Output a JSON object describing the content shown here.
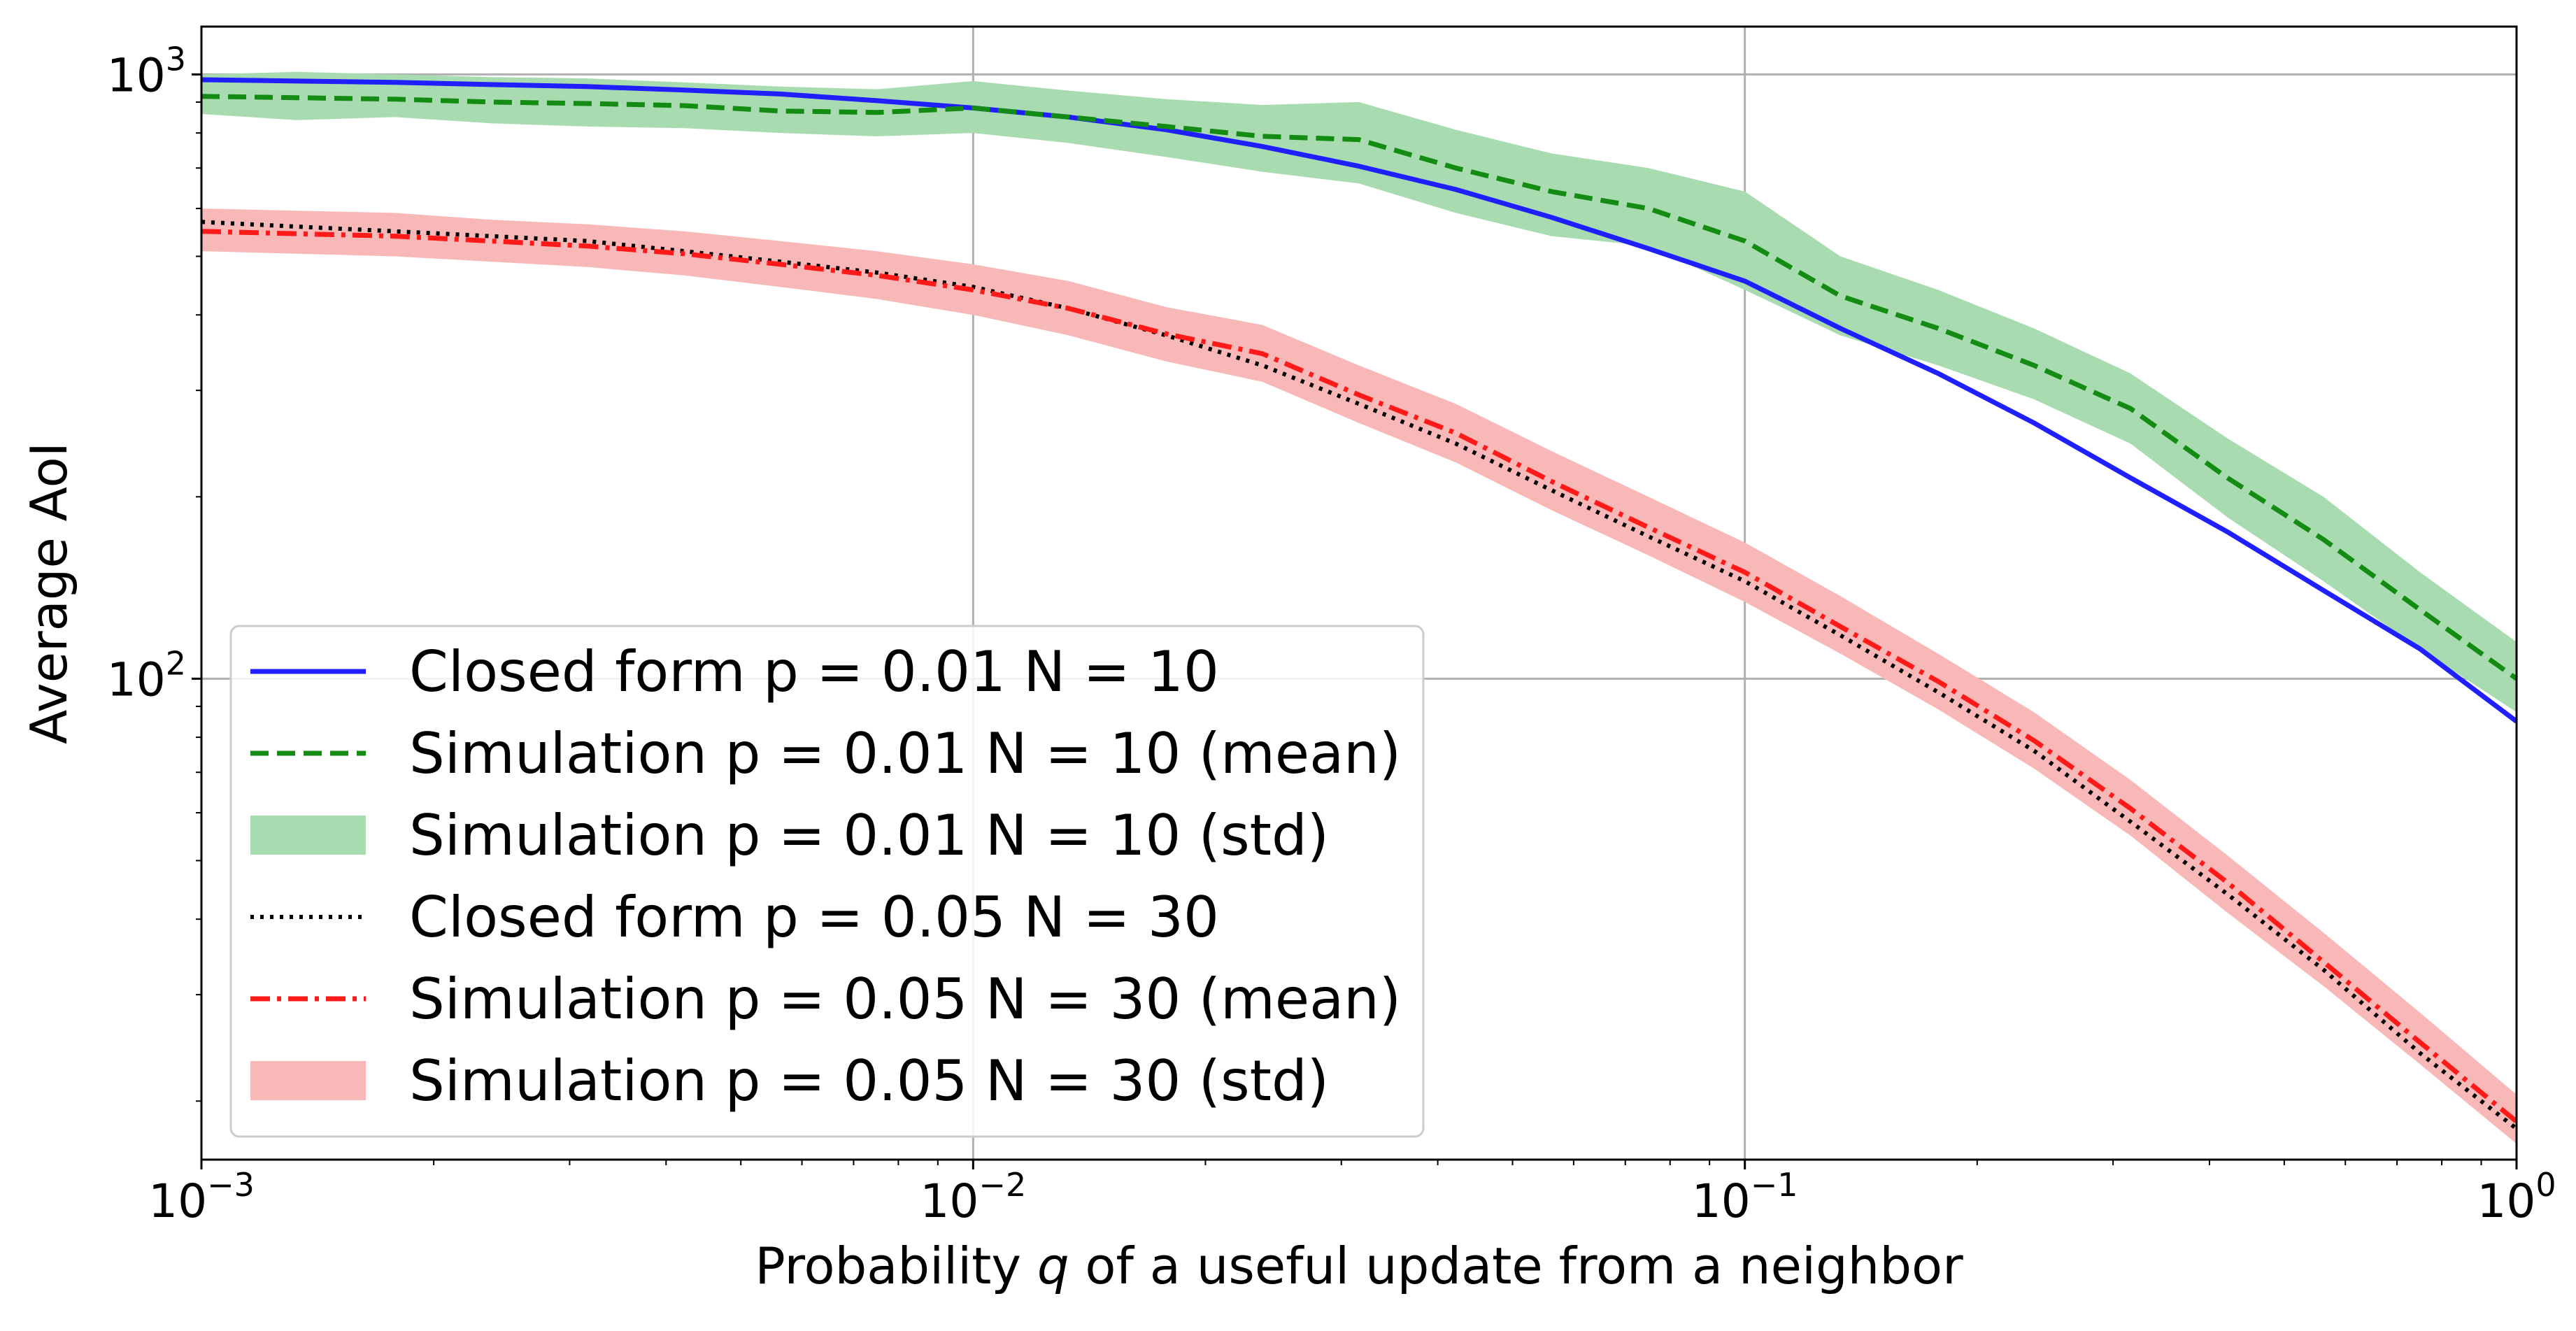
{
  "chart_data": {
    "type": "line",
    "title": "",
    "xlabel_prefix": "Probability ",
    "xlabel_var": "q",
    "xlabel_suffix": " of a useful update from a neighbor",
    "ylabel": "Average AoI",
    "xscale": "log",
    "yscale": "log",
    "xlim": [
      0.001,
      1
    ],
    "ylim": [
      16,
      1200
    ],
    "grid": true,
    "legend_position": "lower-left",
    "x_ticks": [
      {
        "value": 0.001,
        "base": "10",
        "exp": "−3"
      },
      {
        "value": 0.01,
        "base": "10",
        "exp": "−2"
      },
      {
        "value": 0.1,
        "base": "10",
        "exp": "−1"
      },
      {
        "value": 1,
        "base": "10",
        "exp": "0"
      }
    ],
    "y_ticks": [
      {
        "value": 100,
        "base": "10",
        "exp": "2"
      },
      {
        "value": 1000,
        "base": "10",
        "exp": "3"
      }
    ],
    "x": [
      0.001,
      0.00133,
      0.00178,
      0.00237,
      0.00316,
      0.00422,
      0.00562,
      0.0075,
      0.01,
      0.0133,
      0.0178,
      0.0237,
      0.0316,
      0.0422,
      0.0562,
      0.075,
      0.1,
      0.133,
      0.178,
      0.237,
      0.316,
      0.422,
      0.562,
      0.75,
      1.0
    ],
    "series": [
      {
        "name": "Closed form p = 0.01 N = 10",
        "style": "solid",
        "color": "#1f1fff",
        "values": [
          980,
          975,
          970,
          962,
          955,
          942,
          928,
          905,
          880,
          850,
          810,
          760,
          705,
          645,
          580,
          515,
          455,
          380,
          320,
          265,
          215,
          175,
          140,
          112,
          85
        ]
      },
      {
        "name": "Simulation p = 0.01 N = 10 (mean)",
        "style": "dashed",
        "color": "#148c14",
        "values": [
          920,
          915,
          910,
          900,
          895,
          888,
          870,
          865,
          880,
          850,
          820,
          790,
          780,
          700,
          640,
          600,
          530,
          430,
          380,
          330,
          280,
          215,
          170,
          130,
          100
        ]
      },
      {
        "name": "Closed form p = 0.05 N = 30",
        "style": "dotted",
        "color": "#000000",
        "values": [
          570,
          560,
          550,
          540,
          530,
          510,
          490,
          470,
          445,
          410,
          370,
          330,
          285,
          245,
          205,
          172,
          145,
          118,
          95,
          76,
          58,
          44,
          33,
          24,
          18
        ]
      },
      {
        "name": "Simulation p = 0.05 N = 30 (mean)",
        "style": "dashdot",
        "color": "#ff1a1a",
        "values": [
          550,
          545,
          540,
          530,
          520,
          505,
          485,
          465,
          440,
          410,
          372,
          345,
          295,
          255,
          212,
          178,
          150,
          122,
          99,
          79,
          61,
          46,
          34,
          25,
          18.5
        ]
      }
    ],
    "bands": [
      {
        "name": "Simulation p = 0.01 N = 10 (std)",
        "color": "#a8dcb0",
        "lower": [
          860,
          840,
          850,
          830,
          820,
          815,
          800,
          790,
          800,
          770,
          730,
          690,
          660,
          590,
          540,
          520,
          440,
          370,
          330,
          290,
          245,
          185,
          145,
          112,
          88
        ],
        "upper": [
          1000,
          1010,
          1000,
          990,
          985,
          970,
          955,
          945,
          975,
          940,
          910,
          890,
          900,
          810,
          740,
          700,
          640,
          500,
          440,
          380,
          320,
          250,
          200,
          150,
          115
        ]
      },
      {
        "name": "Simulation p = 0.05 N = 30 (std)",
        "color": "#f9b8b8",
        "lower": [
          510,
          505,
          500,
          490,
          480,
          465,
          445,
          425,
          400,
          370,
          335,
          310,
          265,
          228,
          190,
          160,
          134,
          110,
          89,
          71,
          55,
          41,
          31,
          23,
          17
        ],
        "upper": [
          600,
          595,
          590,
          575,
          565,
          550,
          530,
          510,
          485,
          455,
          412,
          385,
          330,
          285,
          238,
          200,
          168,
          137,
          110,
          88,
          68,
          51,
          38,
          28,
          20.5
        ]
      }
    ],
    "legend": [
      {
        "label": "Closed form p = 0.01 N = 10",
        "kind": "line",
        "style": "solid",
        "color": "#1f1fff"
      },
      {
        "label": "Simulation p = 0.01 N = 10 (mean)",
        "kind": "line",
        "style": "dashed",
        "color": "#148c14"
      },
      {
        "label": "Simulation p = 0.01 N = 10 (std)",
        "kind": "patch",
        "color": "#a8dcb0"
      },
      {
        "label": "Closed form p = 0.05 N = 30",
        "kind": "line",
        "style": "dotted",
        "color": "#000000"
      },
      {
        "label": "Simulation p = 0.05 N = 30 (mean)",
        "kind": "line",
        "style": "dashdot",
        "color": "#ff1a1a"
      },
      {
        "label": "Simulation p = 0.05 N = 30 (std)",
        "kind": "patch",
        "color": "#f9b8b8"
      }
    ]
  }
}
